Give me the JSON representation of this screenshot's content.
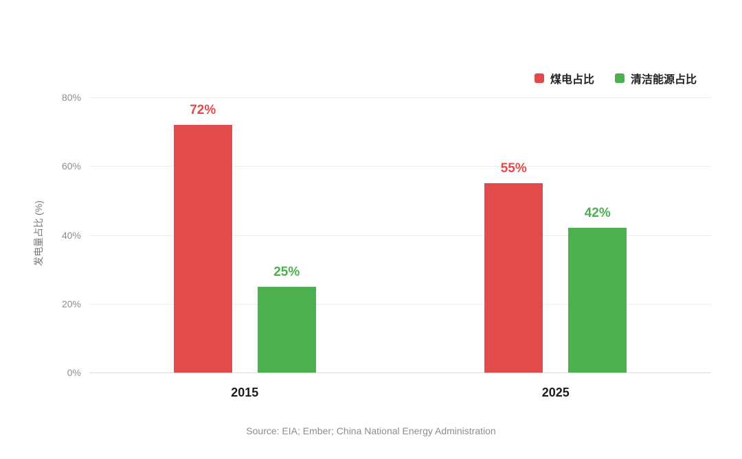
{
  "page": {
    "source_note": "Source: EIA; Ember; China National Energy Administration"
  },
  "chart_data": {
    "type": "bar",
    "title": "",
    "categories": [
      "2015",
      "2025"
    ],
    "series": [
      {
        "name": "煤电占比",
        "color": "#e14b4b",
        "values": [
          72,
          55
        ]
      },
      {
        "name": "清洁能源占比",
        "color": "#4caf50",
        "values": [
          25,
          42
        ]
      }
    ],
    "xlabel": "",
    "ylabel": "发电量占比 (%)",
    "ylim": [
      0,
      80
    ],
    "yticks": [
      0,
      20,
      40,
      60,
      80
    ],
    "ytick_labels": [
      "0%",
      "20%",
      "40%",
      "60%",
      "80%"
    ],
    "data_labels": true,
    "grid": true,
    "legend_position": "top-right"
  }
}
